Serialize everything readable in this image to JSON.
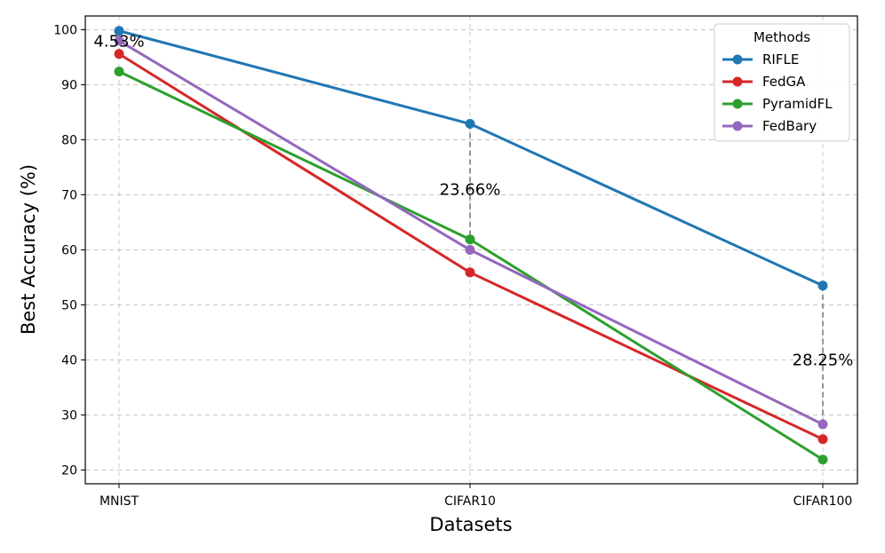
{
  "chart_data": {
    "type": "line",
    "categories": [
      "MNIST",
      "CIFAR10",
      "CIFAR100"
    ],
    "xlabel": "Datasets",
    "ylabel": "Best Accuracy (%)",
    "ylim": [
      17.5,
      102.5
    ],
    "yticks": [
      20,
      30,
      40,
      50,
      60,
      70,
      80,
      90,
      100
    ],
    "grid": true,
    "legend": {
      "title": "Methods",
      "placement": "top-right"
    },
    "series": [
      {
        "name": "RIFLE",
        "color": "#1f77b4",
        "values": [
          99.8,
          82.9,
          53.5
        ]
      },
      {
        "name": "FedGA",
        "color": "#d62728",
        "values": [
          95.6,
          55.9,
          25.6
        ]
      },
      {
        "name": "PyramidFL",
        "color": "#2ca02c",
        "values": [
          92.4,
          61.9,
          21.9
        ]
      },
      {
        "name": "FedBary",
        "color": "#9467bd",
        "values": [
          98.0,
          60.0,
          28.3
        ]
      }
    ],
    "annotations": [
      {
        "text": "4.53%",
        "category": 0,
        "y": 97.9,
        "from": 99.8,
        "to": 95.6
      },
      {
        "text": "23.66%",
        "category": 1,
        "y": 71.0,
        "from": 82.9,
        "to": 60.0
      },
      {
        "text": "28.25%",
        "category": 2,
        "y": 40.0,
        "from": 53.5,
        "to": 28.3
      }
    ]
  }
}
